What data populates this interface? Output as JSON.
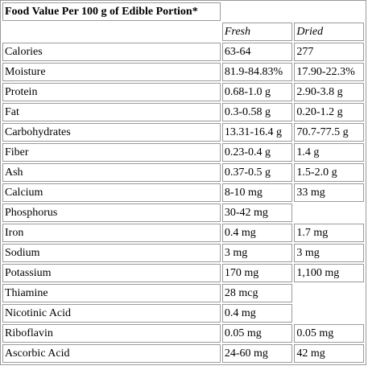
{
  "table": {
    "title": "Food Value Per 100 g of Edible Portion*",
    "columns": [
      "Fresh",
      "Dried"
    ],
    "rows": [
      {
        "nutrient": "Calories",
        "fresh": "63-64",
        "dried": "277"
      },
      {
        "nutrient": "Moisture",
        "fresh": "81.9-84.83%",
        "dried": "17.90-22.3%"
      },
      {
        "nutrient": "Protein",
        "fresh": "0.68-1.0 g",
        "dried": "2.90-3.8 g"
      },
      {
        "nutrient": "Fat",
        "fresh": "0.3-0.58 g",
        "dried": "0.20-1.2 g"
      },
      {
        "nutrient": "Carbohydrates",
        "fresh": "13.31-16.4 g",
        "dried": "70.7-77.5 g"
      },
      {
        "nutrient": "Fiber",
        "fresh": "0.23-0.4 g",
        "dried": "1.4 g"
      },
      {
        "nutrient": "Ash",
        "fresh": "0.37-0.5 g",
        "dried": "1.5-2.0 g"
      },
      {
        "nutrient": "Calcium",
        "fresh": "8-10 mg",
        "dried": "33 mg"
      },
      {
        "nutrient": "Phosphorus",
        "fresh": "30-42 mg",
        "dried": ""
      },
      {
        "nutrient": "Iron",
        "fresh": "0.4 mg",
        "dried": "1.7 mg"
      },
      {
        "nutrient": "Sodium",
        "fresh": "3 mg",
        "dried": "3 mg"
      },
      {
        "nutrient": "Potassium",
        "fresh": "170 mg",
        "dried": "1,100 mg"
      },
      {
        "nutrient": "Thiamine",
        "fresh": "28 mcg",
        "dried": ""
      },
      {
        "nutrient": "Nicotinic Acid",
        "fresh": "0.4 mg",
        "dried": ""
      },
      {
        "nutrient": "Riboflavin",
        "fresh": "0.05 mg",
        "dried": "0.05 mg"
      },
      {
        "nutrient": "Ascorbic Acid",
        "fresh": "24-60 mg",
        "dried": "42 mg"
      }
    ]
  }
}
